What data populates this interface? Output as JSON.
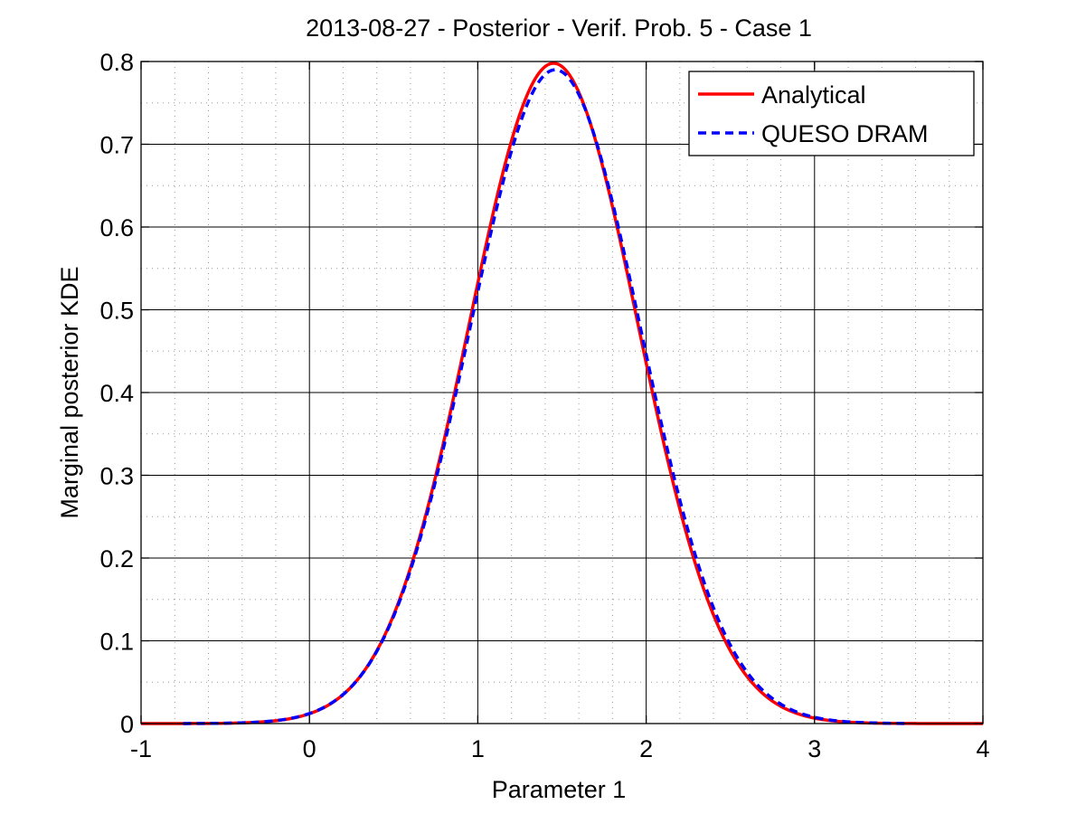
{
  "chart_data": {
    "type": "line",
    "title": "2013-08-27 - Posterior - Verif. Prob. 5 - Case 1",
    "xlabel": "Parameter 1",
    "ylabel": "Marginal posterior KDE",
    "xlim": [
      -1,
      4
    ],
    "ylim": [
      0,
      0.8
    ],
    "x_ticks": [
      -1,
      0,
      1,
      2,
      3,
      4
    ],
    "y_ticks": [
      0,
      0.1,
      0.2,
      0.3,
      0.4,
      0.5,
      0.6,
      0.7,
      0.8
    ],
    "x_tick_labels": [
      "-1",
      "0",
      "1",
      "2",
      "3",
      "4"
    ],
    "y_tick_labels": [
      "0",
      "0.1",
      "0.2",
      "0.3",
      "0.4",
      "0.5",
      "0.6",
      "0.7",
      "0.8"
    ],
    "grid": "major and minor",
    "legend_position": "top-right",
    "series": [
      {
        "name": "Analytical",
        "color": "#ff0000",
        "style": "solid",
        "mean": 1.45,
        "std": 0.5,
        "x_range": [
          -1,
          4
        ]
      },
      {
        "name": "QUESO DRAM",
        "color": "#0000ff",
        "style": "dashed",
        "mean": 1.46,
        "std": 0.505,
        "x_range": [
          -0.75,
          3.55
        ]
      }
    ]
  }
}
